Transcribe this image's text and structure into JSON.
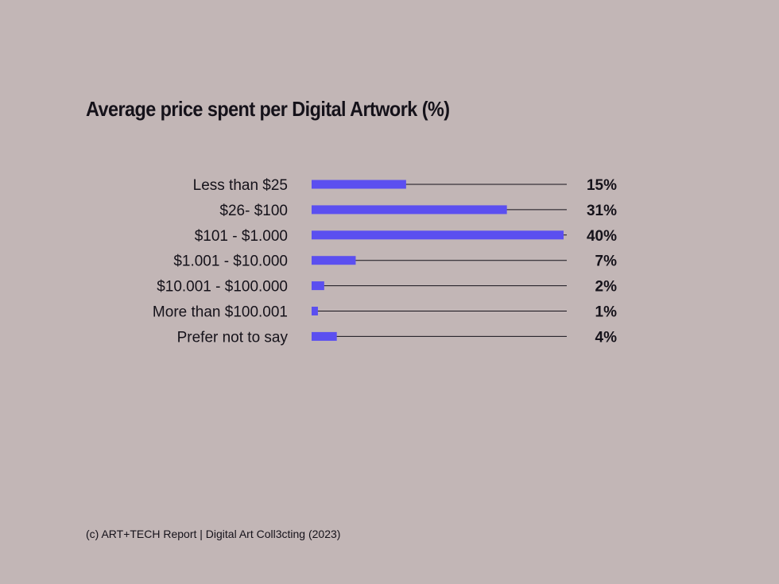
{
  "chart_data": {
    "type": "bar",
    "orientation": "horizontal",
    "title": "Average price spent per Digital Artwork (%)",
    "categories": [
      "Less than $25",
      "$26- $100",
      "$101 - $1.000",
      "$1.001 - $10.000",
      "$10.001 - $100.000",
      "More than $100.001",
      "Prefer not to say"
    ],
    "values": [
      15,
      31,
      40,
      7,
      2,
      1,
      4
    ],
    "value_labels": [
      "15%",
      "31%",
      "40%",
      "7%",
      "2%",
      "1%",
      "4%"
    ],
    "xlim": [
      0,
      40
    ],
    "grid": false,
    "legend": "none",
    "colors": {
      "bar": "#5b4ff0",
      "track": "#15121a",
      "background": "#c2b6b6",
      "text": "#15121a"
    }
  },
  "source": "(c) ART+TECH Report | Digital Art Coll3cting (2023)"
}
